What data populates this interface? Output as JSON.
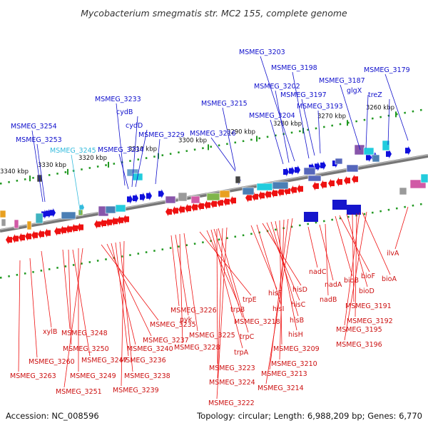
{
  "title": "Mycobacterium smegmatis str. MC2 155, complete genome",
  "footer": {
    "accession": "Accession: NC_008596",
    "topology": "Topology: circular; Length: 6,988,209 bp; Genes: 6,770"
  },
  "colors": {
    "forward": "#1010dd",
    "reverse": "#ee1111",
    "highlight": "#33bbdd",
    "backbone": "#888888",
    "tick": "#229922"
  },
  "scale_ticks": [
    {
      "label": "3340 kbp"
    },
    {
      "label": "3330 kbp"
    },
    {
      "label": "3320 kbp"
    },
    {
      "label": "3310 kbp"
    },
    {
      "label": "3300 kbp"
    },
    {
      "label": "3290 kbp"
    },
    {
      "label": "3280 kbp"
    },
    {
      "label": "3270 kbp"
    },
    {
      "label": "3260 kbp"
    }
  ],
  "top_labels": [
    {
      "text": "MSMEG_3254",
      "color": "#1010cc"
    },
    {
      "text": "MSMEG_3253",
      "color": "#1010cc"
    },
    {
      "text": "MSMEG_3245",
      "color": "#33bbdd"
    },
    {
      "text": "MSMEG_3234",
      "color": "#1010cc"
    },
    {
      "text": "MSMEG_3233",
      "color": "#1010cc"
    },
    {
      "text": "cydB",
      "color": "#1010cc"
    },
    {
      "text": "cydD",
      "color": "#1010cc"
    },
    {
      "text": "MSMEG_3229",
      "color": "#1010cc"
    },
    {
      "text": "MSMEG_3216",
      "color": "#1010cc"
    },
    {
      "text": "MSMEG_3215",
      "color": "#1010cc"
    },
    {
      "text": "MSMEG_3204",
      "color": "#1010cc"
    },
    {
      "text": "MSMEG_3202",
      "color": "#1010cc"
    },
    {
      "text": "MSMEG_3203",
      "color": "#1010cc"
    },
    {
      "text": "MSMEG_3198",
      "color": "#1010cc"
    },
    {
      "text": "MSMEG_3197",
      "color": "#1010cc"
    },
    {
      "text": "MSMEG_3193",
      "color": "#1010cc"
    },
    {
      "text": "MSMEG_3187",
      "color": "#1010cc"
    },
    {
      "text": "glgX",
      "color": "#1010cc"
    },
    {
      "text": "treZ",
      "color": "#1010cc"
    },
    {
      "text": "MSMEG_3179",
      "color": "#1010cc"
    }
  ],
  "bottom_labels": [
    {
      "text": "xylB"
    },
    {
      "text": "MSMEG_3260"
    },
    {
      "text": "MSMEG_3263"
    },
    {
      "text": "MSMEG_3248"
    },
    {
      "text": "MSMEG_3250"
    },
    {
      "text": "MSMEG_3247"
    },
    {
      "text": "MSMEG_3249"
    },
    {
      "text": "MSMEG_3251"
    },
    {
      "text": "MSMEG_3235"
    },
    {
      "text": "MSMEG_3237"
    },
    {
      "text": "MSMEG_3240"
    },
    {
      "text": "MSMEG_3236"
    },
    {
      "text": "MSMEG_3238"
    },
    {
      "text": "MSMEG_3239"
    },
    {
      "text": "MSMEG_3226"
    },
    {
      "text": "pyk"
    },
    {
      "text": "MSMEG_3225"
    },
    {
      "text": "MSMEG_3228"
    },
    {
      "text": "trpE"
    },
    {
      "text": "trpB"
    },
    {
      "text": "MSMEG_3218"
    },
    {
      "text": "trpC"
    },
    {
      "text": "trpA"
    },
    {
      "text": "MSMEG_3223"
    },
    {
      "text": "MSMEG_3224"
    },
    {
      "text": "MSMEG_3222"
    },
    {
      "text": "hisF"
    },
    {
      "text": "hisI"
    },
    {
      "text": "hisD"
    },
    {
      "text": "hisC"
    },
    {
      "text": "hisB"
    },
    {
      "text": "hisH"
    },
    {
      "text": "MSMEG_3209"
    },
    {
      "text": "MSMEG_3210"
    },
    {
      "text": "MSMEG_3213"
    },
    {
      "text": "MSMEG_3214"
    },
    {
      "text": "nadC"
    },
    {
      "text": "nadA"
    },
    {
      "text": "nadB"
    },
    {
      "text": "bioB"
    },
    {
      "text": "bioF"
    },
    {
      "text": "bioD"
    },
    {
      "text": "bioA"
    },
    {
      "text": "MSMEG_3191"
    },
    {
      "text": "MSMEG_3192"
    },
    {
      "text": "MSMEG_3195"
    },
    {
      "text": "MSMEG_3196"
    },
    {
      "text": "ilvA"
    }
  ]
}
